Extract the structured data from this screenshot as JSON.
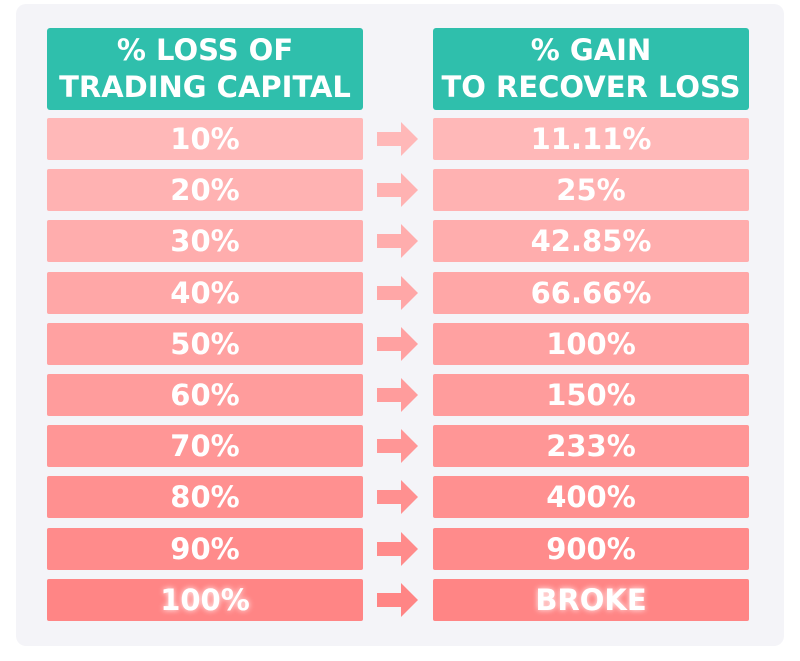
{
  "table": {
    "headers": [
      [
        "% LOSS OF",
        "TRADING CAPITAL"
      ],
      [
        "% GAIN",
        "TO RECOVER LOSS"
      ]
    ],
    "rows": [
      [
        "10%",
        "11.11%"
      ],
      [
        "20%",
        "25%"
      ],
      [
        "30%",
        "42.85%"
      ],
      [
        "40%",
        "66.66%"
      ],
      [
        "50%",
        "100%"
      ],
      [
        "60%",
        "150%"
      ],
      [
        "70%",
        "233%"
      ],
      [
        "80%",
        "400%"
      ],
      [
        "90%",
        "900%"
      ],
      [
        "100%",
        "BROKE"
      ]
    ]
  }
}
